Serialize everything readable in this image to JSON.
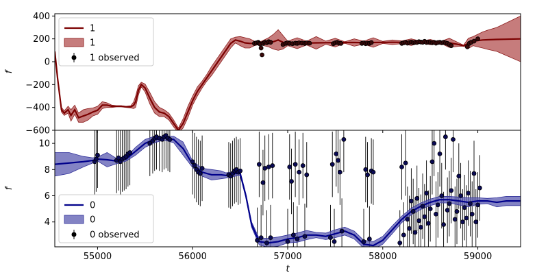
{
  "chart_data": [
    {
      "type": "line",
      "panel": "top",
      "ylabel": "f",
      "xlabel": "",
      "xlim": [
        54550,
        59450
      ],
      "ylim": [
        -600,
        420
      ],
      "yticks": [
        -600,
        -400,
        -200,
        0,
        200,
        400
      ],
      "legend_position": "top-left",
      "legend": [
        "1",
        "1",
        "1 observed"
      ],
      "colors": {
        "line": "#7b0000",
        "band": "#b35050",
        "points": "#000000",
        "band_edge": "#8b1a1a"
      },
      "model": {
        "x": [
          54550,
          54580,
          54620,
          54650,
          54690,
          54720,
          54760,
          54800,
          54850,
          54900,
          54950,
          55000,
          55050,
          55100,
          55150,
          55200,
          55250,
          55300,
          55350,
          55380,
          55400,
          55430,
          55460,
          55500,
          55550,
          55600,
          55650,
          55700,
          55750,
          55800,
          55850,
          55900,
          55950,
          56000,
          56050,
          56100,
          56150,
          56200,
          56250,
          56300,
          56350,
          56400,
          56450,
          56500,
          56550,
          56600,
          56650,
          56700,
          56750,
          56800,
          56850,
          56900,
          56950,
          57000,
          57100,
          57200,
          57300,
          57400,
          57500,
          57600,
          57700,
          57800,
          57900,
          58000,
          58100,
          58200,
          58300,
          58400,
          58500,
          58600,
          58700,
          58800,
          58850,
          58900,
          58950,
          59000,
          59050,
          59100,
          59200,
          59300,
          59450
        ],
        "y": [
          90,
          -150,
          -420,
          -450,
          -420,
          -470,
          -420,
          -490,
          -475,
          -460,
          -440,
          -425,
          -380,
          -380,
          -390,
          -390,
          -390,
          -395,
          -395,
          -380,
          -350,
          -250,
          -200,
          -230,
          -320,
          -400,
          -440,
          -450,
          -480,
          -540,
          -600,
          -540,
          -440,
          -340,
          -260,
          -200,
          -140,
          -80,
          -20,
          40,
          100,
          160,
          190,
          180,
          165,
          160,
          160,
          160,
          165,
          170,
          175,
          190,
          170,
          160,
          162,
          163,
          165,
          166,
          167,
          168,
          168,
          167,
          168,
          169,
          170,
          170,
          171,
          172,
          172,
          170,
          165,
          150,
          140,
          160,
          180,
          185,
          190,
          192,
          195,
          197,
          200
        ],
        "upper": [
          100,
          -140,
          -400,
          -430,
          -390,
          -420,
          -380,
          -450,
          -420,
          -410,
          -405,
          -390,
          -350,
          -360,
          -380,
          -385,
          -385,
          -390,
          -385,
          -350,
          -300,
          -210,
          -180,
          -195,
          -270,
          -350,
          -400,
          -420,
          -450,
          -510,
          -580,
          -500,
          -390,
          -300,
          -220,
          -170,
          -110,
          -40,
          20,
          80,
          140,
          200,
          215,
          220,
          210,
          200,
          180,
          170,
          190,
          210,
          240,
          280,
          230,
          180,
          210,
          180,
          220,
          180,
          205,
          175,
          200,
          180,
          210,
          178,
          190,
          182,
          200,
          180,
          195,
          175,
          205,
          165,
          145,
          205,
          220,
          240,
          260,
          275,
          300,
          340,
          400
        ],
        "lower": [
          80,
          -160,
          -440,
          -470,
          -450,
          -520,
          -460,
          -530,
          -530,
          -510,
          -475,
          -460,
          -410,
          -400,
          -400,
          -395,
          -395,
          -400,
          -405,
          -410,
          -400,
          -290,
          -220,
          -265,
          -370,
          -450,
          -480,
          -480,
          -510,
          -570,
          -620,
          -580,
          -490,
          -380,
          -300,
          -230,
          -170,
          -120,
          -60,
          0,
          60,
          120,
          165,
          140,
          120,
          120,
          140,
          150,
          140,
          130,
          110,
          100,
          110,
          140,
          114,
          146,
          110,
          152,
          129,
          161,
          136,
          154,
          126,
          160,
          150,
          158,
          142,
          164,
          149,
          165,
          125,
          135,
          135,
          115,
          140,
          130,
          120,
          109,
          90,
          54,
          0
        ]
      },
      "observed": {
        "x": [
          56650,
          56670,
          56690,
          56700,
          56710,
          56720,
          56730,
          56740,
          56760,
          56780,
          56800,
          56820,
          56950,
          56980,
          57000,
          57020,
          57050,
          57080,
          57100,
          57120,
          57150,
          57180,
          57200,
          57230,
          57480,
          57500,
          57520,
          57540,
          57560,
          57780,
          57800,
          57820,
          57840,
          57860,
          57880,
          58200,
          58220,
          58240,
          58260,
          58280,
          58300,
          58320,
          58340,
          58360,
          58380,
          58400,
          58420,
          58440,
          58460,
          58480,
          58500,
          58520,
          58540,
          58560,
          58580,
          58600,
          58620,
          58640,
          58660,
          58680,
          58700,
          58720,
          58890,
          58910,
          58930,
          58960,
          59000
        ],
        "y": [
          160,
          165,
          170,
          160,
          155,
          120,
          60,
          160,
          170,
          165,
          175,
          170,
          150,
          160,
          165,
          160,
          158,
          162,
          160,
          165,
          163,
          160,
          165,
          162,
          158,
          165,
          170,
          162,
          160,
          160,
          165,
          158,
          162,
          160,
          168,
          160,
          165,
          170,
          162,
          168,
          172,
          165,
          170,
          168,
          175,
          172,
          170,
          178,
          168,
          172,
          170,
          165,
          170,
          162,
          168,
          170,
          165,
          170,
          165,
          160,
          150,
          140,
          130,
          160,
          170,
          180,
          200
        ]
      }
    },
    {
      "type": "line",
      "panel": "bottom",
      "ylabel": "f",
      "xlabel": "t",
      "xlim": [
        54550,
        59450
      ],
      "ylim": [
        2.1,
        11.0
      ],
      "yticks": [
        4,
        6,
        8,
        10
      ],
      "xticks": [
        55000,
        56000,
        57000,
        58000,
        59000
      ],
      "legend_position": "bottom-left",
      "legend": [
        "0",
        "0",
        "0 observed"
      ],
      "colors": {
        "line": "#00008b",
        "band": "#5a5ab0",
        "points": "#000033",
        "band_edge": "#30309a",
        "errorbar": "#000000"
      },
      "model": {
        "x": [
          54550,
          54700,
          54850,
          54950,
          55000,
          55100,
          55200,
          55300,
          55400,
          55500,
          55600,
          55700,
          55800,
          55900,
          56000,
          56100,
          56200,
          56300,
          56350,
          56400,
          56450,
          56500,
          56560,
          56620,
          56700,
          56800,
          56900,
          57000,
          57100,
          57200,
          57300,
          57400,
          57500,
          57600,
          57700,
          57800,
          57900,
          58000,
          58100,
          58200,
          58300,
          58400,
          58500,
          58600,
          58700,
          58800,
          58900,
          59000,
          59100,
          59200,
          59300,
          59450
        ],
        "y": [
          8.4,
          8.5,
          8.6,
          8.7,
          8.8,
          8.75,
          8.65,
          8.8,
          9.4,
          10.0,
          10.3,
          10.4,
          10.3,
          9.6,
          8.4,
          7.8,
          7.6,
          7.6,
          7.55,
          7.6,
          7.7,
          7.7,
          6.0,
          3.8,
          2.5,
          2.4,
          2.5,
          2.7,
          2.8,
          3.0,
          3.0,
          2.9,
          3.1,
          3.3,
          3.0,
          2.3,
          2.2,
          2.6,
          3.4,
          4.2,
          4.8,
          5.2,
          5.5,
          5.7,
          5.7,
          5.6,
          5.5,
          5.6,
          5.6,
          5.5,
          5.6,
          5.6
        ],
        "upper": [
          9.3,
          9.3,
          9.0,
          8.9,
          8.95,
          9.3,
          8.85,
          8.95,
          9.7,
          10.3,
          10.55,
          10.55,
          10.55,
          10.1,
          8.65,
          8.1,
          8.0,
          7.9,
          7.75,
          7.8,
          7.9,
          7.85,
          6.15,
          4.0,
          2.75,
          2.75,
          2.85,
          3.0,
          3.15,
          3.35,
          3.2,
          3.15,
          3.4,
          3.6,
          3.3,
          2.6,
          2.5,
          2.9,
          3.7,
          4.45,
          5.05,
          5.45,
          5.75,
          5.95,
          5.95,
          5.9,
          5.85,
          5.85,
          5.8,
          5.85,
          5.95,
          5.95
        ],
        "lower": [
          7.5,
          7.7,
          8.2,
          8.5,
          8.65,
          8.2,
          8.45,
          8.65,
          9.1,
          9.7,
          10.05,
          10.25,
          10.05,
          9.1,
          8.15,
          7.5,
          7.2,
          7.3,
          7.35,
          7.4,
          7.5,
          7.55,
          5.85,
          3.6,
          2.25,
          2.05,
          2.15,
          2.4,
          2.45,
          2.65,
          2.8,
          2.65,
          2.8,
          3.0,
          2.7,
          2.0,
          1.9,
          2.3,
          3.1,
          3.95,
          4.55,
          4.95,
          5.25,
          5.45,
          5.45,
          5.3,
          5.15,
          5.35,
          5.4,
          5.15,
          5.25,
          5.25
        ]
      },
      "observed": {
        "x": [
          54970,
          54985,
          55000,
          55200,
          55220,
          55240,
          55260,
          55280,
          55300,
          55320,
          55340,
          55550,
          55580,
          55600,
          55620,
          55650,
          55680,
          55700,
          55720,
          55740,
          55760,
          56000,
          56020,
          56040,
          56060,
          56080,
          56100,
          56380,
          56400,
          56420,
          56440,
          56460,
          56480,
          56500,
          56680,
          56700,
          56720,
          56740,
          56760,
          56780,
          56800,
          56820,
          56840,
          57000,
          57020,
          57040,
          57060,
          57080,
          57100,
          57120,
          57160,
          57180,
          57200,
          57450,
          57470,
          57490,
          57510,
          57530,
          57550,
          57570,
          57590,
          57800,
          57820,
          57840,
          57860,
          57880,
          57900,
          58180,
          58200,
          58220,
          58240,
          58260,
          58280,
          58300,
          58320,
          58340,
          58360,
          58380,
          58400,
          58420,
          58440,
          58460,
          58480,
          58500,
          58520,
          58540,
          58560,
          58580,
          58600,
          58620,
          58640,
          58660,
          58680,
          58700,
          58720,
          58740,
          58760,
          58780,
          58800,
          58820,
          58840,
          58860,
          58880,
          58900,
          58920,
          58940,
          58960,
          58980,
          59000,
          59020
        ],
        "y": [
          8.6,
          8.8,
          9.1,
          8.7,
          8.9,
          8.6,
          8.8,
          8.9,
          9.0,
          9.2,
          9.3,
          10.0,
          10.2,
          10.4,
          10.5,
          10.4,
          10.3,
          10.5,
          10.6,
          10.4,
          10.3,
          8.6,
          8.3,
          8.0,
          7.8,
          7.7,
          8.1,
          7.6,
          7.5,
          7.7,
          7.9,
          8.0,
          7.8,
          7.9,
          2.6,
          8.4,
          2.8,
          7.0,
          8.1,
          2.4,
          8.2,
          2.8,
          8.3,
          2.5,
          8.2,
          7.1,
          3.0,
          8.4,
          2.7,
          7.8,
          8.3,
          2.9,
          7.6,
          2.8,
          8.4,
          2.5,
          9.2,
          8.7,
          7.8,
          3.3,
          10.3,
          2.5,
          8.0,
          7.6,
          2.7,
          7.9,
          7.8,
          2.4,
          8.2,
          3.0,
          8.5,
          4.2,
          3.5,
          5.6,
          4.8,
          3.2,
          5.8,
          4.1,
          3.6,
          5.2,
          4.4,
          6.2,
          3.9,
          5.0,
          8.6,
          10.0,
          4.6,
          5.3,
          9.2,
          6.0,
          3.8,
          10.5,
          4.9,
          5.4,
          6.4,
          10.3,
          4.2,
          4.8,
          7.5,
          6.0,
          4.0,
          5.1,
          4.3,
          6.2,
          5.4,
          4.6,
          7.7,
          4.0,
          5.3,
          6.6
        ]
      },
      "errorbar_sigma": 2.5
    }
  ]
}
